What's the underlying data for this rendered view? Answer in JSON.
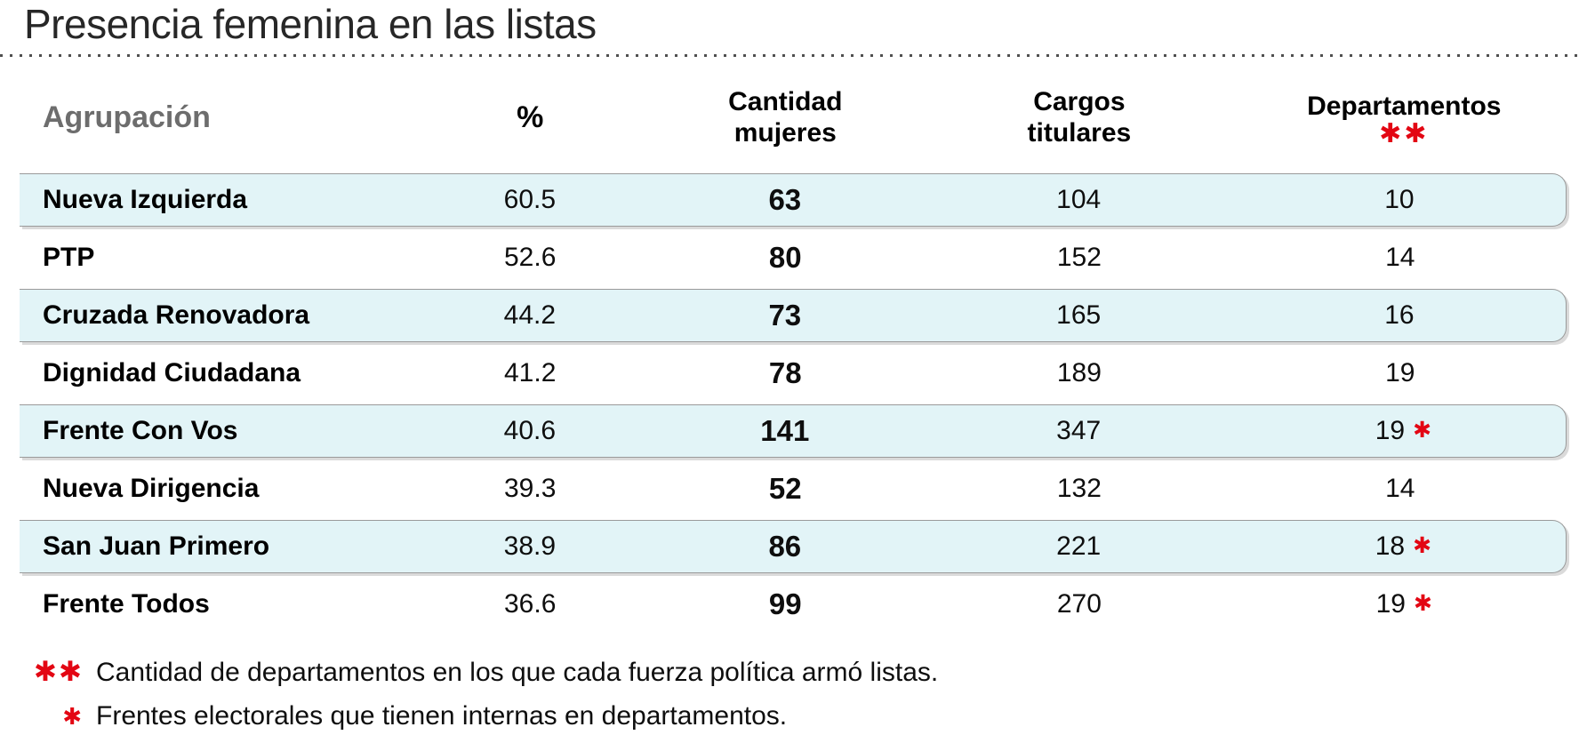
{
  "title": "Presencia femenina en las listas",
  "colors": {
    "accent_red": "#e30613",
    "row_shade": "#e2f4f7",
    "row_border": "#9a9a9a",
    "header_gray": "#6d6d6d"
  },
  "table": {
    "headers": {
      "agrupacion": "Agrupación",
      "pct": "%",
      "mujeres_line1": "Cantidad",
      "mujeres_line2": "mujeres",
      "cargos_line1": "Cargos",
      "cargos_line2": "titulares",
      "departamentos": "Departamentos",
      "departamentos_marker": "✱✱"
    },
    "rows": [
      {
        "agrupacion": "Nueva Izquierda",
        "pct": "60.5",
        "mujeres": "63",
        "cargos": "104",
        "departamentos": "10",
        "interna_marker": "",
        "shaded": true
      },
      {
        "agrupacion": "PTP",
        "pct": "52.6",
        "mujeres": "80",
        "cargos": "152",
        "departamentos": "14",
        "interna_marker": "",
        "shaded": false
      },
      {
        "agrupacion": "Cruzada Renovadora",
        "pct": "44.2",
        "mujeres": "73",
        "cargos": "165",
        "departamentos": "16",
        "interna_marker": "",
        "shaded": true
      },
      {
        "agrupacion": "Dignidad Ciudadana",
        "pct": "41.2",
        "mujeres": "78",
        "cargos": "189",
        "departamentos": "19",
        "interna_marker": "",
        "shaded": false
      },
      {
        "agrupacion": "Frente Con Vos",
        "pct": "40.6",
        "mujeres": "141",
        "cargos": "347",
        "departamentos": "19",
        "interna_marker": "✱",
        "shaded": true
      },
      {
        "agrupacion": "Nueva Dirigencia",
        "pct": "39.3",
        "mujeres": "52",
        "cargos": "132",
        "departamentos": "14",
        "interna_marker": "",
        "shaded": false
      },
      {
        "agrupacion": "San Juan Primero",
        "pct": "38.9",
        "mujeres": "86",
        "cargos": "221",
        "departamentos": "18",
        "interna_marker": "✱",
        "shaded": true
      },
      {
        "agrupacion": "Frente Todos",
        "pct": "36.6",
        "mujeres": "99",
        "cargos": "270",
        "departamentos": "19",
        "interna_marker": "✱",
        "shaded": false
      }
    ]
  },
  "footnotes": [
    {
      "marker": "✱✱",
      "text": "Cantidad de departamentos en los que cada fuerza política armó listas."
    },
    {
      "marker": "✱",
      "text": "Frentes electorales que tienen internas en departamentos."
    }
  ],
  "chart_data": {
    "type": "table",
    "title": "Presencia femenina en las listas",
    "columns": [
      "Agrupación",
      "%",
      "Cantidad mujeres",
      "Cargos titulares",
      "Departamentos **"
    ],
    "rows": [
      [
        "Nueva Izquierda",
        60.5,
        63,
        104,
        "10"
      ],
      [
        "PTP",
        52.6,
        80,
        152,
        "14"
      ],
      [
        "Cruzada Renovadora",
        44.2,
        73,
        165,
        "16"
      ],
      [
        "Dignidad Ciudadana",
        41.2,
        78,
        189,
        "19"
      ],
      [
        "Frente Con Vos",
        40.6,
        141,
        347,
        "19 *"
      ],
      [
        "Nueva Dirigencia",
        39.3,
        52,
        132,
        "14"
      ],
      [
        "San Juan Primero",
        38.9,
        86,
        221,
        "18 *"
      ],
      [
        "Frente Todos",
        36.6,
        99,
        270,
        "19 *"
      ]
    ],
    "footnotes": [
      "** Cantidad de departamentos en los que cada fuerza política armó listas.",
      "* Frentes electorales que tienen internas en departamentos."
    ],
    "layout_hints": {
      "shaded_row_indices": [
        0,
        2,
        4,
        6
      ],
      "bold_columns": [
        "Agrupación",
        "Cantidad mujeres"
      ],
      "marker_color": "#e30613"
    }
  }
}
